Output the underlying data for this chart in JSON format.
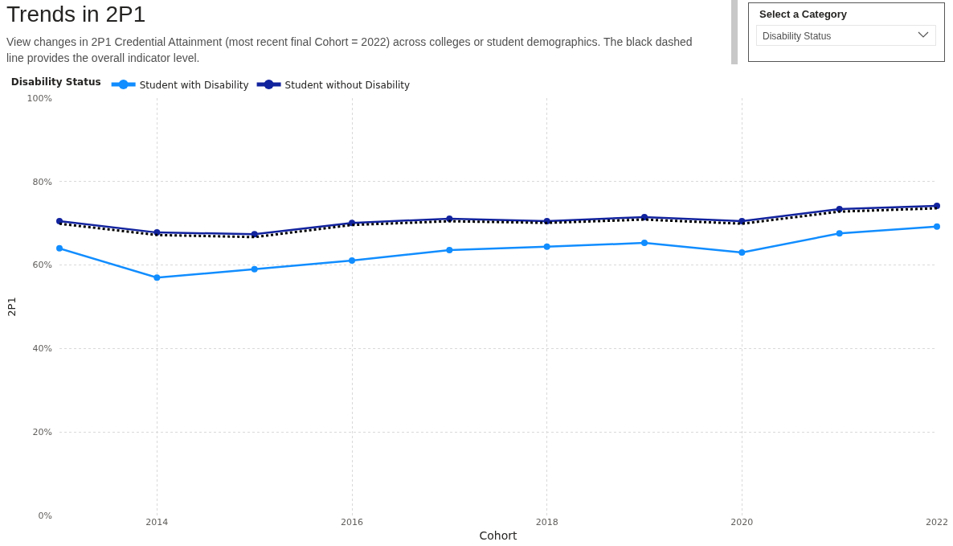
{
  "chart_data": {
    "type": "line",
    "title": "Trends in 2P1",
    "subtitle": "View changes in 2P1 Credential Attainment (most recent final Cohort = 2022) across colleges or student demographics. The black dashed line provides the overall indicator level.",
    "xlabel": "Cohort",
    "ylabel": "2P1",
    "legend_title": "Disability Status",
    "annotations": [
      "Select a Category",
      "Disability Status"
    ],
    "x": [
      2013,
      2014,
      2015,
      2016,
      2017,
      2018,
      2019,
      2020,
      2021,
      2022
    ],
    "series": [
      {
        "name": "Student with Disability",
        "color": "#118dff",
        "values": [
          64.0,
          57.0,
          59.0,
          61.1,
          63.6,
          64.4,
          65.3,
          63.0,
          67.6,
          69.2
        ]
      },
      {
        "name": "Student without Disability",
        "color": "#12239e",
        "values": [
          70.5,
          67.8,
          67.4,
          70.1,
          71.1,
          70.5,
          71.5,
          70.5,
          73.4,
          74.2
        ]
      },
      {
        "color": "#000000",
        "marker": "none",
        "line_style": "dotted",
        "values": [
          69.9,
          67.2,
          66.7,
          69.6,
          70.5,
          70.1,
          70.9,
          69.9,
          72.8,
          73.6
        ]
      }
    ],
    "xlim": [
      2013,
      2022
    ],
    "xticks": [
      2014,
      2016,
      2018,
      2020,
      2022
    ],
    "ylim": [
      0,
      100
    ],
    "yticks": [
      {
        "value": 0,
        "label": "0%"
      },
      {
        "value": 20,
        "label": "20%"
      },
      {
        "value": 40,
        "label": "40%"
      },
      {
        "value": 60,
        "label": "60%"
      },
      {
        "value": 80,
        "label": "80%"
      },
      {
        "value": 100,
        "label": "100%"
      }
    ],
    "grid": true,
    "legend": "top left",
    "marker": "circle",
    "line_style": "solid"
  }
}
